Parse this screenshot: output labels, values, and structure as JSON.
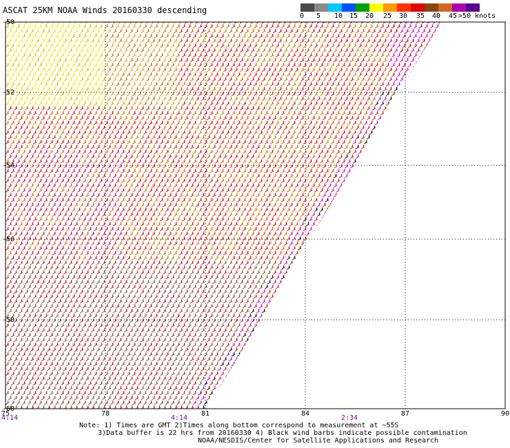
{
  "title": "ASCAT 25KM NOAA Winds 20160330 descending",
  "legend": {
    "labels": [
      "0",
      "5",
      "10",
      "15",
      "20",
      "25",
      "30",
      "35",
      "40",
      "45",
      ">50 knots"
    ],
    "colors": [
      "#4a4a4a",
      "#8a8a8a",
      "#00c8ff",
      "#0050ff",
      "#00a000",
      "#ffff00",
      "#ff9900",
      "#ff3300",
      "#e00000",
      "#8b4513",
      "#d2691e",
      "#b000b0",
      "#5a0090"
    ]
  },
  "map": {
    "lat_labels": [
      "-50",
      "-52",
      "-54",
      "-56",
      "-58",
      "-60"
    ],
    "lon_labels": [
      "75",
      "78",
      "81",
      "84",
      "87",
      "90"
    ],
    "time_labels": [
      "4:14",
      "4:14",
      "2:34"
    ],
    "time_color": "#6a0dad",
    "grid_color": "#000000"
  },
  "notes": [
    "Note: 1) Times are GMT 2)Times along bottom correspond to measurement at ~55S",
    "3)Data buffer is 22 hrs from 20160330 4) Black wind barbs indicate possible contamination",
    "NOAA/NESDIS/Center for Satellite Applications and Research"
  ]
}
